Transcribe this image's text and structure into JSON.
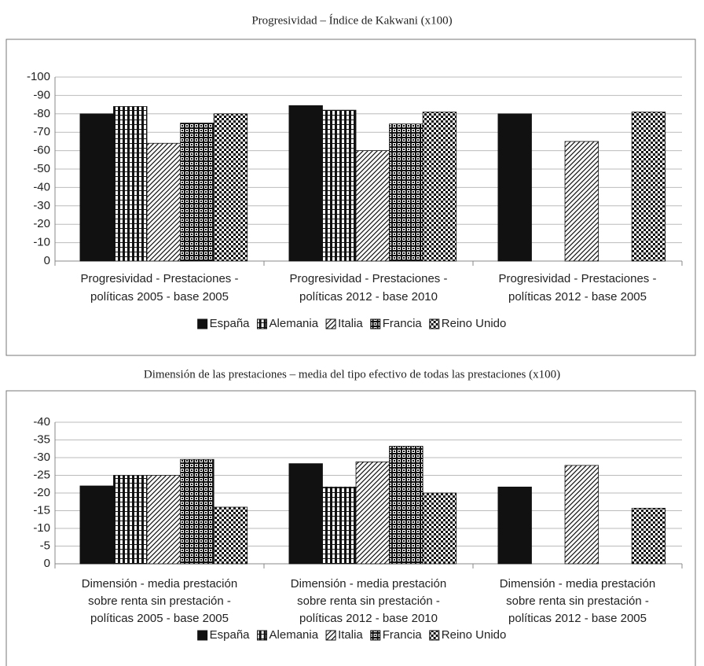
{
  "chart_data": [
    {
      "type": "bar",
      "title": "Progresividad – Índice de Kakwani (x100)",
      "categories": [
        [
          "Progresividad - Prestaciones -",
          "políticas 2005 - base 2005"
        ],
        [
          "Progresividad - Prestaciones -",
          "políticas 2012 - base 2010"
        ],
        [
          "Progresividad - Prestaciones -",
          "políticas 2012 - base 2005"
        ]
      ],
      "series": [
        {
          "name": "España",
          "color": "#111111",
          "pattern": "solid",
          "values": [
            -80,
            -84.5,
            -80
          ]
        },
        {
          "name": "Alemania",
          "color": "#111111",
          "pattern": "vertical",
          "values": [
            -84,
            -82,
            null
          ]
        },
        {
          "name": "Italia",
          "color": "#111111",
          "pattern": "diagonal",
          "values": [
            -64,
            -60,
            -65
          ]
        },
        {
          "name": "Francia",
          "color": "#111111",
          "pattern": "grid",
          "values": [
            -75,
            -74.5,
            null
          ]
        },
        {
          "name": "Reino Unido",
          "color": "#111111",
          "pattern": "checker",
          "values": [
            -80,
            -81,
            -81
          ]
        }
      ],
      "ylim": [
        0,
        -100
      ],
      "yticks": [
        0,
        -10,
        -20,
        -30,
        -40,
        -50,
        -60,
        -70,
        -80,
        -90,
        -100
      ],
      "grid": true,
      "legend": "bottom"
    },
    {
      "type": "bar",
      "title": "Dimensión de las prestaciones – media del tipo efectivo de todas las prestaciones (x100)",
      "categories": [
        [
          "Dimensión - media prestación",
          "sobre renta sin prestación -",
          "políticas 2005 - base 2005"
        ],
        [
          "Dimensión - media prestación",
          "sobre renta sin prestación -",
          "políticas 2012 - base 2010"
        ],
        [
          "Dimensión - media prestación",
          "sobre renta sin prestación -",
          "políticas 2012 - base 2005"
        ]
      ],
      "series": [
        {
          "name": "España",
          "color": "#111111",
          "pattern": "solid",
          "values": [
            -22,
            -28.3,
            -21.7
          ]
        },
        {
          "name": "Alemania",
          "color": "#111111",
          "pattern": "vertical",
          "values": [
            -25,
            -21.7,
            null
          ]
        },
        {
          "name": "Italia",
          "color": "#111111",
          "pattern": "diagonal",
          "values": [
            -25,
            -28.8,
            -27.8
          ]
        },
        {
          "name": "Francia",
          "color": "#111111",
          "pattern": "grid",
          "values": [
            -29.5,
            -33.2,
            null
          ]
        },
        {
          "name": "Reino Unido",
          "color": "#111111",
          "pattern": "checker",
          "values": [
            -16,
            -20,
            -15.7
          ]
        }
      ],
      "ylim": [
        0,
        -40
      ],
      "yticks": [
        0,
        -5,
        -10,
        -15,
        -20,
        -25,
        -30,
        -35,
        -40
      ],
      "grid": true,
      "legend": "bottom"
    }
  ]
}
